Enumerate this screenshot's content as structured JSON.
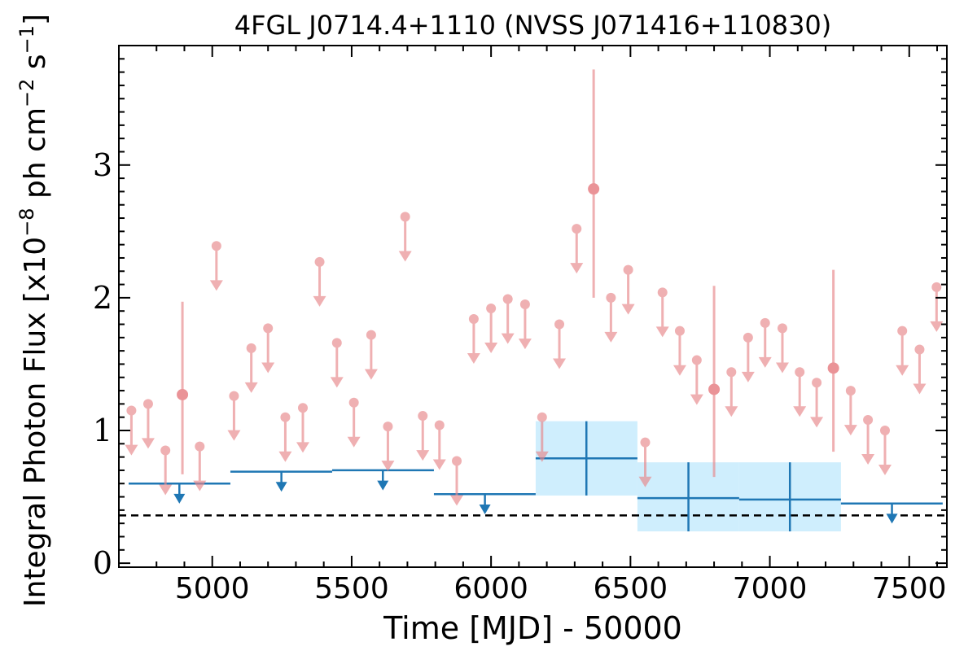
{
  "chart_data": {
    "type": "scatter",
    "title": "4FGL J0714.4+1110 (NVSS J071416+110830)",
    "xlabel": "Time [MJD] - 50000",
    "ylabel": "Integral Photon Flux [x10",
    "ylabel_exp1": "−8",
    "ylabel_mid": " ph cm",
    "ylabel_exp2": "−2",
    "ylabel_mid2": " s",
    "ylabel_exp3": "−1",
    "ylabel_end": "]",
    "xlim": [
      4665,
      7635
    ],
    "ylim": [
      -0.03,
      3.9
    ],
    "xticks": [
      5000,
      5500,
      6000,
      6500,
      7000,
      7500
    ],
    "xtick_labels": [
      "5000",
      "5500",
      "6000",
      "6500",
      "7000",
      "7500"
    ],
    "yticks": [
      0,
      1,
      2,
      3
    ],
    "ytick_labels": [
      "0",
      "1",
      "2",
      "3"
    ],
    "grid": false,
    "colors": {
      "fine": "#e8868a",
      "coarse": "#1f77b4",
      "band": "#cfeefd",
      "reference": "#000000"
    },
    "reference_line": 0.36,
    "fine_upper_limits": [
      {
        "x": 4710,
        "y": 1.15
      },
      {
        "x": 4770,
        "y": 1.2
      },
      {
        "x": 4832,
        "y": 0.85
      },
      {
        "x": 4955,
        "y": 0.88
      },
      {
        "x": 5015,
        "y": 2.39
      },
      {
        "x": 5078,
        "y": 1.26
      },
      {
        "x": 5140,
        "y": 1.62
      },
      {
        "x": 5200,
        "y": 1.77
      },
      {
        "x": 5262,
        "y": 1.1
      },
      {
        "x": 5325,
        "y": 1.17
      },
      {
        "x": 5385,
        "y": 2.27
      },
      {
        "x": 5447,
        "y": 1.66
      },
      {
        "x": 5508,
        "y": 1.21
      },
      {
        "x": 5570,
        "y": 1.72
      },
      {
        "x": 5630,
        "y": 1.03
      },
      {
        "x": 5692,
        "y": 2.61
      },
      {
        "x": 5755,
        "y": 1.11
      },
      {
        "x": 5815,
        "y": 1.04
      },
      {
        "x": 5877,
        "y": 0.77
      },
      {
        "x": 5938,
        "y": 1.84
      },
      {
        "x": 6000,
        "y": 1.92
      },
      {
        "x": 6060,
        "y": 1.99
      },
      {
        "x": 6122,
        "y": 1.95
      },
      {
        "x": 6183,
        "y": 1.1
      },
      {
        "x": 6245,
        "y": 1.8
      },
      {
        "x": 6307,
        "y": 2.52
      },
      {
        "x": 6430,
        "y": 2.0
      },
      {
        "x": 6492,
        "y": 2.21
      },
      {
        "x": 6553,
        "y": 0.91
      },
      {
        "x": 6615,
        "y": 2.04
      },
      {
        "x": 6677,
        "y": 1.75
      },
      {
        "x": 6738,
        "y": 1.53
      },
      {
        "x": 6862,
        "y": 1.44
      },
      {
        "x": 6922,
        "y": 1.7
      },
      {
        "x": 6983,
        "y": 1.81
      },
      {
        "x": 7045,
        "y": 1.77
      },
      {
        "x": 7107,
        "y": 1.44
      },
      {
        "x": 7168,
        "y": 1.36
      },
      {
        "x": 7290,
        "y": 1.3
      },
      {
        "x": 7352,
        "y": 1.08
      },
      {
        "x": 7413,
        "y": 1.0
      },
      {
        "x": 7475,
        "y": 1.75
      },
      {
        "x": 7537,
        "y": 1.61
      },
      {
        "x": 7598,
        "y": 2.08
      }
    ],
    "fine_detections": [
      {
        "x": 4893,
        "y": 1.27,
        "y_low": 0.67,
        "y_high": 1.97
      },
      {
        "x": 6368,
        "y": 2.82,
        "y_low": 2.0,
        "y_high": 3.72
      },
      {
        "x": 6800,
        "y": 1.31,
        "y_low": 0.65,
        "y_high": 2.09
      },
      {
        "x": 7228,
        "y": 1.47,
        "y_low": 0.84,
        "y_high": 2.21
      }
    ],
    "coarse_upper_limits": [
      {
        "x_low": 4700,
        "x_high": 5065,
        "x": 4882,
        "y": 0.6
      },
      {
        "x_low": 5065,
        "x_high": 5430,
        "x": 5248,
        "y": 0.69
      },
      {
        "x_low": 5430,
        "x_high": 5795,
        "x": 5612,
        "y": 0.7
      },
      {
        "x_low": 5795,
        "x_high": 6160,
        "x": 5978,
        "y": 0.52
      },
      {
        "x_low": 7255,
        "x_high": 7620,
        "x": 7438,
        "y": 0.45
      }
    ],
    "coarse_detections": [
      {
        "x_low": 6160,
        "x_high": 6525,
        "x": 6342,
        "y": 0.79,
        "y_low": 0.51,
        "y_high": 1.07
      },
      {
        "x_low": 6525,
        "x_high": 6890,
        "x": 6708,
        "y": 0.49,
        "y_low": 0.24,
        "y_high": 0.76
      },
      {
        "x_low": 6890,
        "x_high": 7255,
        "x": 7072,
        "y": 0.48,
        "y_low": 0.24,
        "y_high": 0.76
      }
    ]
  }
}
